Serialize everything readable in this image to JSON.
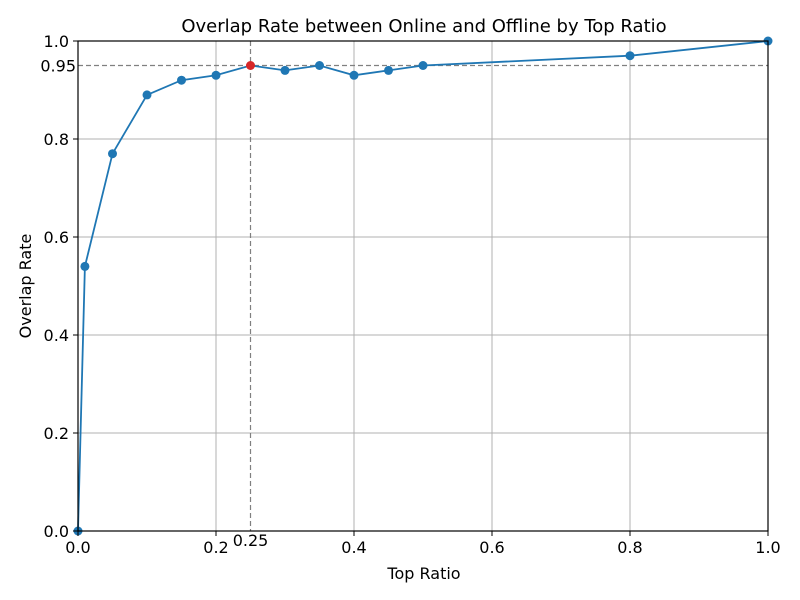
{
  "chart_data": {
    "type": "line",
    "title": "Overlap Rate between Online and Offline by Top Ratio",
    "xlabel": "Top Ratio",
    "ylabel": "Overlap Rate",
    "xlim": [
      0,
      1
    ],
    "ylim": [
      0,
      1
    ],
    "grid": true,
    "x_ticks": [
      {
        "value": 0.0,
        "label": "0.0"
      },
      {
        "value": 0.2,
        "label": "0.2"
      },
      {
        "value": 0.4,
        "label": "0.4"
      },
      {
        "value": 0.6,
        "label": "0.6"
      },
      {
        "value": 0.8,
        "label": "0.8"
      },
      {
        "value": 1.0,
        "label": "1.0"
      }
    ],
    "y_ticks": [
      {
        "value": 0.0,
        "label": "0.0"
      },
      {
        "value": 0.2,
        "label": "0.2"
      },
      {
        "value": 0.4,
        "label": "0.4"
      },
      {
        "value": 0.6,
        "label": "0.6"
      },
      {
        "value": 0.8,
        "label": "0.8"
      },
      {
        "value": 1.0,
        "label": "1.0"
      }
    ],
    "series": [
      {
        "x": [
          0.0,
          0.01,
          0.05,
          0.1,
          0.15,
          0.2,
          0.25,
          0.3,
          0.35,
          0.4,
          0.45,
          0.5,
          0.8,
          1.0
        ],
        "y": [
          0.0,
          0.54,
          0.77,
          0.89,
          0.92,
          0.93,
          0.95,
          0.94,
          0.95,
          0.93,
          0.94,
          0.95,
          0.97,
          1.0
        ],
        "color": "#1f77b4",
        "marker": "circle"
      }
    ],
    "highlight": {
      "x": 0.25,
      "y": 0.95,
      "color": "#d62728"
    },
    "reference_lines": {
      "horizontal": {
        "value": 0.95,
        "label": "0.95"
      },
      "vertical": {
        "value": 0.25,
        "label": "0.25"
      }
    }
  }
}
